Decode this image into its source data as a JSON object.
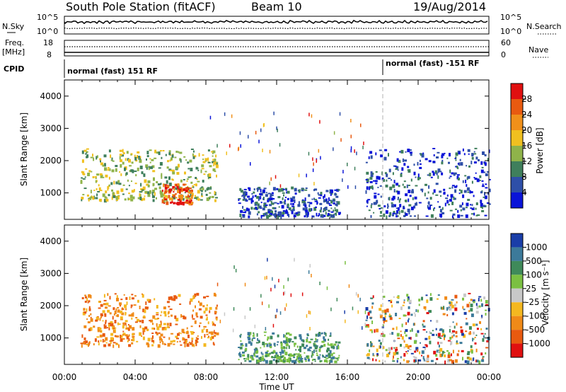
{
  "header": {
    "station": "South Pole Station (fitACF)",
    "beam": "Beam 10",
    "date": "19/Aug/2014"
  },
  "top_panels": {
    "nsky_label": "N.Sky",
    "nsky_ticks": [
      "10^5",
      "10^0"
    ],
    "nsearch_label": "N.Search",
    "nsearch_ticks": [
      "10^5",
      "10^0"
    ],
    "freq_label": "Freq.",
    "freq_unit": "[MHz]",
    "freq_ticks": [
      "18",
      "8"
    ],
    "nave_label": "Nave",
    "nave_ticks": [
      "60",
      "0"
    ],
    "cpid_label": "CPID",
    "cpid_segments": [
      {
        "label": "normal (fast) 151 RF",
        "start_hour": 0,
        "end_hour": 18
      },
      {
        "label": "normal (fast) -151 RF",
        "start_hour": 18,
        "end_hour": 24
      }
    ]
  },
  "chart_data": [
    {
      "type": "heatmap",
      "title": "",
      "xlabel": "",
      "ylabel": "Slant Range [km]",
      "xlim": [
        0,
        24
      ],
      "ylim": [
        180,
        4500
      ],
      "yticks": [
        1000,
        2000,
        3000,
        4000
      ],
      "colorbar": {
        "label": "Power [dB]",
        "range": [
          0,
          32
        ],
        "ticks": [
          "4",
          "8",
          "12",
          "16",
          "20",
          "24",
          "28"
        ]
      },
      "echo_regions": [
        {
          "t0": 0.9,
          "t1": 8.6,
          "r0": 800,
          "r1": 2400,
          "level": "strong"
        },
        {
          "t0": 5.5,
          "t1": 7.2,
          "r0": 700,
          "r1": 1300,
          "level": "peak"
        },
        {
          "t0": 9.8,
          "t1": 15.5,
          "r0": 300,
          "r1": 1200,
          "level": "moderate"
        },
        {
          "t0": 17.0,
          "t1": 24.0,
          "r0": 300,
          "r1": 2400,
          "level": "moderate"
        }
      ]
    },
    {
      "type": "heatmap",
      "title": "",
      "xlabel": "Time UT",
      "ylabel": "Slant Range [km]",
      "xlim": [
        0,
        24
      ],
      "ylim": [
        180,
        4500
      ],
      "xticks": [
        "00:00",
        "04:00",
        "08:00",
        "12:00",
        "16:00",
        "20:00",
        "00:00"
      ],
      "yticks": [
        1000,
        2000,
        3000,
        4000
      ],
      "colorbar": {
        "label": "Velocity [m s⁻¹]",
        "ticks": [
          "1000",
          "500",
          "100",
          "25",
          "-25",
          "-100",
          "-500",
          "-1000"
        ]
      },
      "echo_regions": [
        {
          "t0": 0.9,
          "t1": 8.6,
          "r0": 800,
          "r1": 2400,
          "velocity_sign": "negative"
        },
        {
          "t0": 9.8,
          "t1": 15.5,
          "r0": 300,
          "r1": 1200,
          "velocity_sign": "positive"
        },
        {
          "t0": 17.0,
          "t1": 24.0,
          "r0": 300,
          "r1": 2400,
          "velocity_sign": "mixed"
        }
      ]
    }
  ],
  "colors": {
    "power_scale": [
      "#0a14d8",
      "#2e4fa8",
      "#3f7f5c",
      "#8fb34a",
      "#f0c020",
      "#f0901a",
      "#e85a10",
      "#e01010"
    ],
    "velocity_scale": [
      "#1a3ea8",
      "#3c7a9a",
      "#3f8a5a",
      "#7bc042",
      "#c8c8c8",
      "#f4b820",
      "#f08a18",
      "#e85a10",
      "#e01010"
    ]
  }
}
